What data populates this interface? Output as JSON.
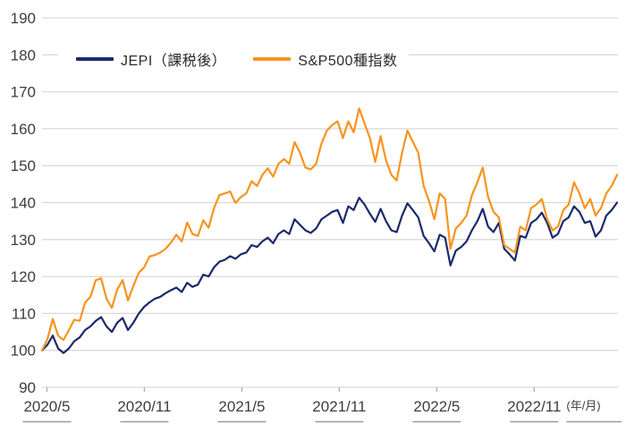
{
  "page": {
    "background_color": "#FFFFFF",
    "grid_color": "#D9D9D9",
    "axis_text_color": "#3D3D3D",
    "tick_color": "#AFAFAF",
    "label_underline_color": "#9B9B9B"
  },
  "legend": {
    "items": [
      {
        "label": "JEPI（課税後）",
        "color": "#1B2A6B"
      },
      {
        "label": "S&P500種指数",
        "color": "#F7941E"
      }
    ]
  },
  "chart_data": {
    "type": "line",
    "title": "",
    "xlabel": "",
    "ylabel": "",
    "grid": true,
    "legend_position": "top-left",
    "y_axis": {
      "range": [
        90,
        190
      ],
      "ticks": [
        190,
        180,
        170,
        160,
        150,
        140,
        130,
        120,
        110,
        100,
        90
      ]
    },
    "x_axis": {
      "ticks": [
        "2020/5",
        "2020/11",
        "2021/5",
        "2021/11",
        "2022/5",
        "2022/11"
      ],
      "unit_label": "(年/月)",
      "tick_positions_months": [
        0.3,
        6.3,
        12.3,
        18.3,
        24.3,
        30.3
      ],
      "range_months": [
        0,
        35.4
      ]
    },
    "series": [
      {
        "name": "JEPI（課税後）",
        "color": "#1B2A6B",
        "values": [
          100,
          101.5,
          104,
          100.5,
          99.3,
          100.5,
          102.5,
          103.5,
          105.5,
          106.5,
          108,
          109,
          106.5,
          105,
          107.5,
          108.8,
          105.5,
          107.5,
          110,
          111.8,
          113,
          114,
          114.5,
          115.5,
          116.3,
          117,
          115.8,
          118.3,
          117.2,
          117.8,
          120.5,
          120,
          122.5,
          124,
          124.5,
          125.5,
          124.8,
          126,
          126.5,
          128.5,
          128,
          129.5,
          130.5,
          129,
          131.5,
          132.5,
          131.5,
          135.5,
          134,
          132.5,
          131.8,
          133,
          135.5,
          136.5,
          137.5,
          138,
          134.5,
          139,
          138,
          141.3,
          139.5,
          137,
          134.8,
          138.3,
          135,
          132.5,
          132,
          136.5,
          139.8,
          138,
          136,
          131,
          129,
          126.8,
          131.3,
          130.5,
          123,
          127,
          128,
          129.5,
          132.5,
          135,
          138.3,
          133.5,
          132,
          134.5,
          127.5,
          126,
          124.3,
          131,
          130.5,
          134.5,
          135.5,
          137.3,
          134.5,
          130.5,
          131.5,
          135,
          136,
          139,
          137.5,
          134.5,
          135,
          130.8,
          132.5,
          136.5,
          138,
          140
        ]
      },
      {
        "name": "S&P500種指数",
        "color": "#F7941E",
        "values": [
          100,
          103,
          108.5,
          104,
          102.8,
          105.5,
          108.3,
          108,
          112.9,
          114.5,
          119,
          119.5,
          114,
          111.5,
          116.5,
          119,
          113.5,
          117.5,
          121,
          122.5,
          125.4,
          125.8,
          126.5,
          127.5,
          129.2,
          131.3,
          129.5,
          134.6,
          131.5,
          131,
          135.2,
          133.2,
          138.5,
          142,
          142.5,
          143,
          139.9,
          141.5,
          142.5,
          145.8,
          144.5,
          147.5,
          149.3,
          147,
          150.5,
          151.8,
          150.5,
          156.4,
          153.5,
          149.5,
          149,
          150.5,
          156,
          159.5,
          161,
          162,
          157.5,
          162,
          159,
          165.5,
          161.5,
          157.5,
          151,
          158,
          151.5,
          147.5,
          146,
          153.5,
          159.5,
          156.5,
          153.5,
          144.5,
          140.5,
          135.5,
          142.5,
          141,
          127.5,
          133,
          134.5,
          136.5,
          142,
          145.5,
          149.5,
          141.5,
          137.5,
          136,
          128.5,
          127.5,
          126.5,
          133.5,
          132.5,
          138.5,
          139.5,
          141,
          135.5,
          132.5,
          133.5,
          138,
          139.5,
          145.5,
          142.5,
          138.5,
          141,
          136.5,
          138.5,
          142.5,
          144.5,
          147.5
        ]
      }
    ]
  }
}
